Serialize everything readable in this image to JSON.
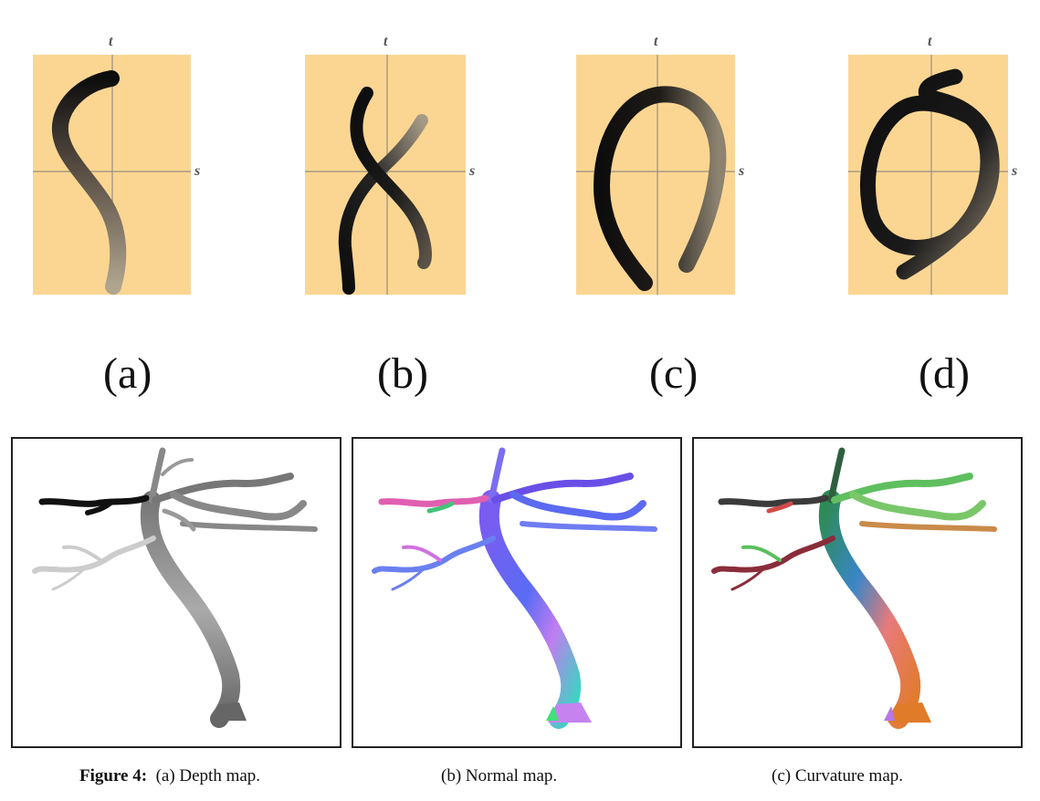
{
  "top_panels": [
    {
      "id": "a",
      "label": "(a)",
      "axis_t": "t",
      "axis_s": "s"
    },
    {
      "id": "b",
      "label": "(b)",
      "axis_t": "t",
      "axis_s": "s"
    },
    {
      "id": "c",
      "label": "(c)",
      "axis_t": "t",
      "axis_s": "s"
    },
    {
      "id": "d",
      "label": "(d)",
      "axis_t": "t",
      "axis_s": "s"
    }
  ],
  "colors": {
    "panel_bg": "#fbd692",
    "axis": "#9a8f80",
    "stroke_dark": "#0d0d0d",
    "stroke_light": "#a59a86"
  },
  "figure_caption": {
    "number": "Figure 4:",
    "parts": [
      "(a) Depth map.",
      "(b) Normal map.",
      "(c) Curvature map."
    ]
  }
}
